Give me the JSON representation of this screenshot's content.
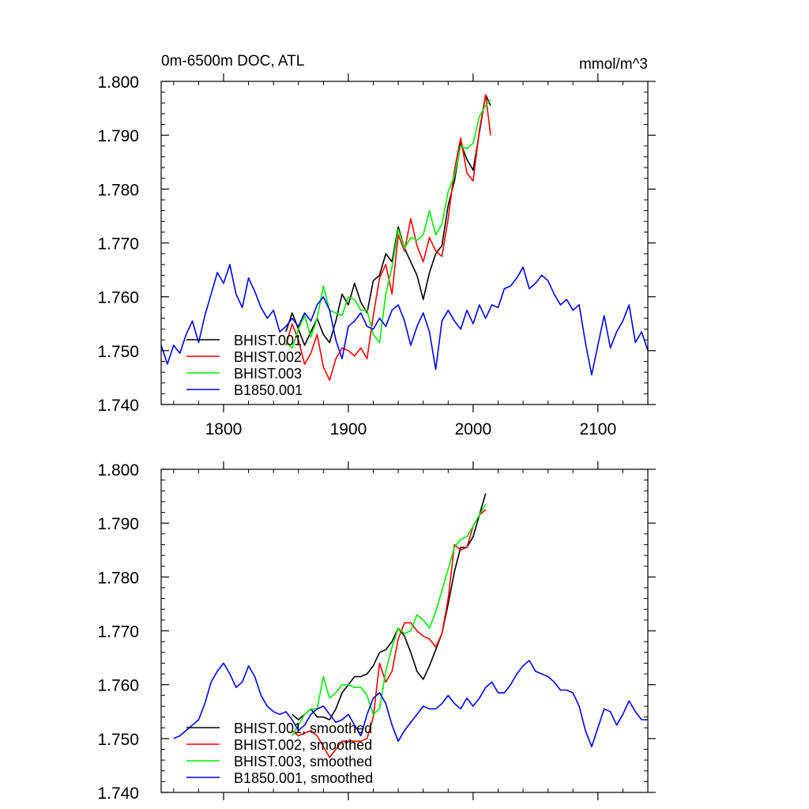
{
  "figure": {
    "title_left": "0m-6500m DOC, ATL",
    "title_right": "mmol/m^3"
  },
  "chart_data": [
    {
      "type": "line",
      "panel": "top",
      "title": "0m-6500m DOC, ATL",
      "units": "mmol/m^3",
      "xlim": [
        1750,
        2140
      ],
      "ylim": [
        1.74,
        1.8
      ],
      "x_ticks": [
        1800,
        1900,
        2000,
        2100
      ],
      "x_tick_labels": [
        "1800",
        "1900",
        "2000",
        "2100"
      ],
      "y_ticks": [
        1.74,
        1.75,
        1.76,
        1.77,
        1.78,
        1.79,
        1.8
      ],
      "y_tick_labels": [
        "1.740",
        "1.750",
        "1.760",
        "1.770",
        "1.780",
        "1.790",
        "1.800"
      ],
      "legend_position": "lower-left",
      "series": [
        {
          "name": "BHIST.001",
          "color": "#000000",
          "x": [
            1850,
            1855,
            1860,
            1865,
            1870,
            1875,
            1880,
            1885,
            1890,
            1895,
            1900,
            1905,
            1910,
            1915,
            1920,
            1925,
            1930,
            1935,
            1940,
            1945,
            1950,
            1955,
            1960,
            1965,
            1970,
            1975,
            1980,
            1985,
            1990,
            1995,
            2000,
            2005,
            2010,
            2014
          ],
          "values": [
            1.7535,
            1.757,
            1.754,
            1.751,
            1.7535,
            1.756,
            1.753,
            1.7515,
            1.7555,
            1.7605,
            1.7585,
            1.7625,
            1.759,
            1.757,
            1.763,
            1.764,
            1.768,
            1.7665,
            1.773,
            1.769,
            1.7665,
            1.764,
            1.7595,
            1.7645,
            1.768,
            1.7695,
            1.777,
            1.7815,
            1.7885,
            1.7855,
            1.7835,
            1.7905,
            1.7975,
            1.7955
          ]
        },
        {
          "name": "BHIST.002",
          "color": "#ff0000",
          "x": [
            1850,
            1855,
            1860,
            1865,
            1870,
            1875,
            1880,
            1885,
            1890,
            1895,
            1900,
            1905,
            1910,
            1915,
            1920,
            1925,
            1930,
            1935,
            1940,
            1945,
            1950,
            1955,
            1960,
            1965,
            1970,
            1975,
            1980,
            1985,
            1990,
            1995,
            2000,
            2005,
            2010,
            2014
          ],
          "values": [
            1.751,
            1.755,
            1.752,
            1.7475,
            1.7495,
            1.753,
            1.747,
            1.7445,
            1.7485,
            1.7505,
            1.75,
            1.749,
            1.7505,
            1.7485,
            1.7565,
            1.7635,
            1.766,
            1.7605,
            1.7715,
            1.7685,
            1.7745,
            1.7695,
            1.7665,
            1.771,
            1.7685,
            1.7675,
            1.7745,
            1.7835,
            1.7895,
            1.783,
            1.7815,
            1.791,
            1.7975,
            1.79
          ]
        },
        {
          "name": "BHIST.003",
          "color": "#00ee00",
          "x": [
            1850,
            1855,
            1860,
            1865,
            1870,
            1875,
            1880,
            1885,
            1890,
            1895,
            1900,
            1905,
            1910,
            1915,
            1920,
            1925,
            1930,
            1935,
            1940,
            1945,
            1950,
            1955,
            1960,
            1965,
            1970,
            1975,
            1980,
            1985,
            1990,
            1995,
            2000,
            2005,
            2010,
            2014
          ],
          "values": [
            1.7515,
            1.7505,
            1.754,
            1.7565,
            1.7525,
            1.756,
            1.762,
            1.7575,
            1.757,
            1.7565,
            1.76,
            1.7595,
            1.7575,
            1.7575,
            1.753,
            1.7515,
            1.7605,
            1.7655,
            1.7725,
            1.769,
            1.771,
            1.7705,
            1.7715,
            1.776,
            1.7715,
            1.7735,
            1.7795,
            1.7825,
            1.788,
            1.7875,
            1.7885,
            1.7935,
            1.7955,
            1.7965
          ]
        },
        {
          "name": "B1850.001",
          "color": "#0000ff",
          "x": [
            1750,
            1755,
            1760,
            1765,
            1770,
            1775,
            1780,
            1785,
            1790,
            1795,
            1800,
            1805,
            1810,
            1815,
            1820,
            1825,
            1830,
            1835,
            1840,
            1845,
            1850,
            1855,
            1860,
            1865,
            1870,
            1875,
            1880,
            1885,
            1890,
            1895,
            1900,
            1905,
            1910,
            1915,
            1920,
            1925,
            1930,
            1935,
            1940,
            1945,
            1950,
            1955,
            1960,
            1965,
            1970,
            1975,
            1980,
            1985,
            1990,
            1995,
            2000,
            2005,
            2010,
            2015,
            2020,
            2025,
            2030,
            2035,
            2040,
            2045,
            2050,
            2055,
            2060,
            2065,
            2070,
            2075,
            2080,
            2085,
            2090,
            2095,
            2100,
            2105,
            2110,
            2115,
            2120,
            2125,
            2130,
            2135,
            2140
          ],
          "values": [
            1.751,
            1.7475,
            1.751,
            1.7495,
            1.753,
            1.7555,
            1.7515,
            1.7565,
            1.7605,
            1.7645,
            1.7625,
            1.766,
            1.7605,
            1.758,
            1.7635,
            1.761,
            1.758,
            1.756,
            1.7575,
            1.7535,
            1.7545,
            1.756,
            1.7545,
            1.757,
            1.7555,
            1.7585,
            1.76,
            1.7575,
            1.752,
            1.7485,
            1.7545,
            1.7555,
            1.757,
            1.7545,
            1.754,
            1.756,
            1.7545,
            1.7575,
            1.7585,
            1.7555,
            1.751,
            1.7545,
            1.757,
            1.7535,
            1.7465,
            1.7555,
            1.7575,
            1.7555,
            1.754,
            1.7575,
            1.755,
            1.7585,
            1.756,
            1.7585,
            1.758,
            1.7615,
            1.762,
            1.7635,
            1.7655,
            1.7615,
            1.7625,
            1.764,
            1.763,
            1.7605,
            1.7585,
            1.7595,
            1.7575,
            1.7585,
            1.7515,
            1.7455,
            1.751,
            1.7565,
            1.7505,
            1.7535,
            1.7555,
            1.7585,
            1.7515,
            1.7535,
            1.75
          ]
        }
      ]
    },
    {
      "type": "line",
      "panel": "bottom",
      "xlim": [
        1750,
        2140
      ],
      "ylim": [
        1.74,
        1.8
      ],
      "x_ticks": [
        1800,
        1900,
        2000,
        2100
      ],
      "x_tick_labels": [],
      "y_ticks": [
        1.74,
        1.75,
        1.76,
        1.77,
        1.78,
        1.79,
        1.8
      ],
      "y_tick_labels": [
        "1.740",
        "1.750",
        "1.760",
        "1.770",
        "1.780",
        "1.790",
        "1.800"
      ],
      "legend_position": "lower-left",
      "series": [
        {
          "name": "BHIST.001, smoothed",
          "color": "#000000",
          "x": [
            1855,
            1860,
            1865,
            1870,
            1875,
            1880,
            1885,
            1890,
            1895,
            1900,
            1905,
            1910,
            1915,
            1920,
            1925,
            1930,
            1935,
            1940,
            1945,
            1950,
            1955,
            1960,
            1965,
            1970,
            1975,
            1980,
            1985,
            1990,
            1995,
            2000,
            2005,
            2010
          ],
          "values": [
            1.7545,
            1.7535,
            1.7545,
            1.7555,
            1.754,
            1.754,
            1.7535,
            1.7555,
            1.7585,
            1.76,
            1.7615,
            1.7615,
            1.762,
            1.7635,
            1.766,
            1.7665,
            1.768,
            1.7705,
            1.769,
            1.766,
            1.7625,
            1.761,
            1.7635,
            1.7665,
            1.7695,
            1.775,
            1.781,
            1.7855,
            1.7855,
            1.7875,
            1.7915,
            1.7955
          ]
        },
        {
          "name": "BHIST.002, smoothed",
          "color": "#ff0000",
          "x": [
            1855,
            1860,
            1865,
            1870,
            1875,
            1880,
            1885,
            1890,
            1895,
            1900,
            1905,
            1910,
            1915,
            1920,
            1925,
            1930,
            1935,
            1940,
            1945,
            1950,
            1955,
            1960,
            1965,
            1970,
            1975,
            1980,
            1985,
            1990,
            1995,
            2000,
            2005,
            2010
          ],
          "values": [
            1.7515,
            1.7505,
            1.751,
            1.7515,
            1.7505,
            1.7485,
            1.7465,
            1.748,
            1.7495,
            1.7495,
            1.7495,
            1.7495,
            1.75,
            1.754,
            1.764,
            1.7605,
            1.7625,
            1.7685,
            1.7715,
            1.7715,
            1.77,
            1.769,
            1.7685,
            1.767,
            1.7695,
            1.776,
            1.786,
            1.785,
            1.7855,
            1.7895,
            1.7915,
            1.7925
          ]
        },
        {
          "name": "BHIST.003, smoothed",
          "color": "#00ee00",
          "x": [
            1855,
            1860,
            1865,
            1870,
            1875,
            1880,
            1885,
            1890,
            1895,
            1900,
            1905,
            1910,
            1915,
            1920,
            1925,
            1930,
            1935,
            1940,
            1945,
            1950,
            1955,
            1960,
            1965,
            1970,
            1975,
            1980,
            1985,
            1990,
            1995,
            2000,
            2005,
            2010
          ],
          "values": [
            1.7505,
            1.7525,
            1.7545,
            1.7555,
            1.7555,
            1.7615,
            1.7575,
            1.7585,
            1.76,
            1.76,
            1.7595,
            1.7595,
            1.758,
            1.7545,
            1.7555,
            1.7625,
            1.767,
            1.7705,
            1.7695,
            1.77,
            1.773,
            1.772,
            1.7705,
            1.7735,
            1.7775,
            1.7815,
            1.7855,
            1.787,
            1.7875,
            1.7895,
            1.7915,
            1.7935
          ]
        },
        {
          "name": "B1850.001, smoothed",
          "color": "#0000ff",
          "x": [
            1760,
            1765,
            1770,
            1775,
            1780,
            1785,
            1790,
            1795,
            1800,
            1805,
            1810,
            1815,
            1820,
            1825,
            1830,
            1835,
            1840,
            1845,
            1850,
            1855,
            1860,
            1865,
            1870,
            1875,
            1880,
            1885,
            1890,
            1895,
            1900,
            1905,
            1910,
            1915,
            1920,
            1925,
            1930,
            1935,
            1940,
            1945,
            1950,
            1955,
            1960,
            1965,
            1970,
            1975,
            1980,
            1985,
            1990,
            1995,
            2000,
            2005,
            2010,
            2015,
            2020,
            2025,
            2030,
            2035,
            2040,
            2045,
            2050,
            2055,
            2060,
            2065,
            2070,
            2075,
            2080,
            2085,
            2090,
            2095,
            2100,
            2105,
            2110,
            2115,
            2120,
            2125,
            2130,
            2135,
            2140
          ],
          "values": [
            1.75,
            1.7505,
            1.7515,
            1.7525,
            1.7535,
            1.7565,
            1.7605,
            1.7625,
            1.764,
            1.762,
            1.7595,
            1.7605,
            1.7635,
            1.7615,
            1.758,
            1.756,
            1.755,
            1.7545,
            1.755,
            1.7535,
            1.7515,
            1.7525,
            1.7545,
            1.7555,
            1.756,
            1.7545,
            1.753,
            1.7535,
            1.7545,
            1.7525,
            1.7505,
            1.7545,
            1.7575,
            1.7585,
            1.7565,
            1.7525,
            1.7495,
            1.7515,
            1.753,
            1.7545,
            1.756,
            1.7555,
            1.7555,
            1.7565,
            1.758,
            1.7565,
            1.7555,
            1.7575,
            1.756,
            1.7575,
            1.7595,
            1.7605,
            1.7585,
            1.7585,
            1.76,
            1.762,
            1.7635,
            1.7645,
            1.7625,
            1.762,
            1.7615,
            1.7605,
            1.759,
            1.759,
            1.7585,
            1.756,
            1.7515,
            1.7485,
            1.752,
            1.7555,
            1.755,
            1.7525,
            1.7545,
            1.757,
            1.755,
            1.7535,
            1.7535
          ]
        }
      ]
    }
  ]
}
